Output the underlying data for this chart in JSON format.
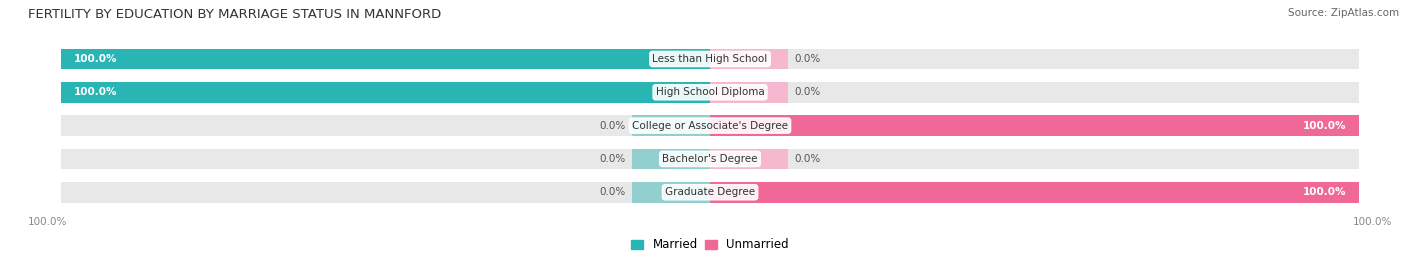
{
  "title": "FERTILITY BY EDUCATION BY MARRIAGE STATUS IN MANNFORD",
  "source": "Source: ZipAtlas.com",
  "categories": [
    "Less than High School",
    "High School Diploma",
    "College or Associate's Degree",
    "Bachelor's Degree",
    "Graduate Degree"
  ],
  "married": [
    100.0,
    100.0,
    0.0,
    0.0,
    0.0
  ],
  "unmarried": [
    0.0,
    0.0,
    100.0,
    0.0,
    100.0
  ],
  "married_color": "#2ab5b5",
  "unmarried_color": "#f06898",
  "married_light": "#92d0d0",
  "unmarried_light": "#f5b8ce",
  "bg_color": "#e8e8e8",
  "bar_height": 0.62,
  "title_fontsize": 9.5,
  "label_fontsize": 7.5,
  "value_fontsize": 7.5,
  "legend_fontsize": 8.5,
  "source_fontsize": 7.5
}
